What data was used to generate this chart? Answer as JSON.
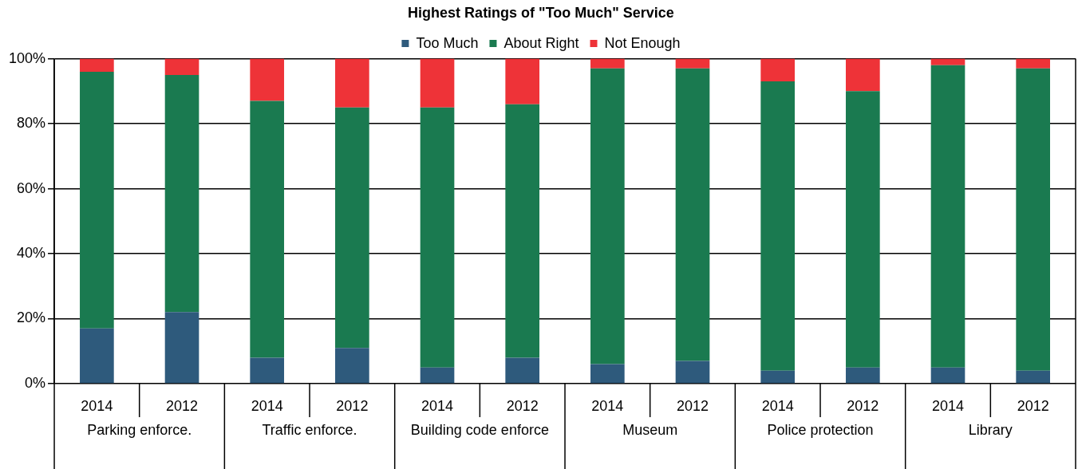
{
  "chart_data": {
    "type": "bar",
    "title": "Highest Ratings of \"Too Much\" Service",
    "categories": [
      "2014",
      "2012",
      "2014",
      "2012",
      "2014",
      "2012",
      "2014",
      "2012",
      "2014",
      "2012",
      "2014",
      "2012"
    ],
    "annotations": [
      "Parking enforce.",
      "Traffic enforce.",
      "Building code enforce",
      "Museum",
      "Police protection",
      "Library"
    ],
    "stacked": true,
    "series": [
      {
        "name": "Too Much",
        "color": "#2e5a7c",
        "values": [
          17,
          22,
          8,
          11,
          5,
          8,
          6,
          7,
          4,
          5,
          5,
          4
        ]
      },
      {
        "name": "About Right",
        "color": "#1a7a50",
        "values": [
          79,
          73,
          79,
          74,
          80,
          78,
          91,
          90,
          89,
          85,
          93,
          93
        ]
      },
      {
        "name": "Not Enough",
        "color": "#ee3338",
        "values": [
          4,
          5,
          13,
          15,
          15,
          14,
          3,
          3,
          7,
          10,
          2,
          3
        ]
      }
    ],
    "ylim": [
      0,
      100
    ],
    "yticks": [
      {
        "value": 0,
        "label": "0%"
      },
      {
        "value": 20,
        "label": "20%"
      },
      {
        "value": 40,
        "label": "40%"
      },
      {
        "value": 60,
        "label": "60%"
      },
      {
        "value": 80,
        "label": "80%"
      },
      {
        "value": 100,
        "label": "100%"
      }
    ],
    "grid": "y",
    "legend": "top"
  }
}
